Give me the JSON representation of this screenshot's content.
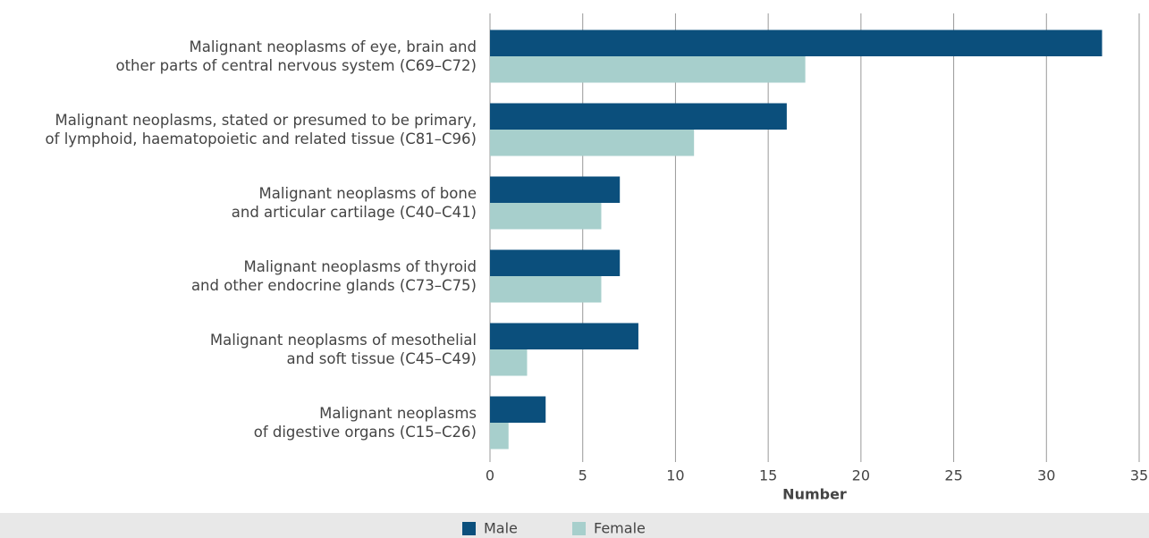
{
  "chart_data": {
    "type": "barh",
    "categories": [
      "Malignant neoplasms of eye, brain and\nother parts of central nervous system (C69–C72)",
      "Malignant neoplasms, stated or presumed to be primary,\nof lymphoid, haematopoietic and related tissue (C81–C96)",
      "Malignant neoplasms of bone\nand articular cartilage (C40–C41)",
      "Malignant neoplasms of thyroid\nand other endocrine glands (C73–C75)",
      "Malignant neoplasms of mesothelial\nand soft tissue (C45–C49)",
      "Malignant neoplasms\nof digestive organs (C15–C26)"
    ],
    "series": [
      {
        "name": "Male",
        "color": "#0b4f7c",
        "values": [
          33,
          16,
          7,
          7,
          8,
          3
        ]
      },
      {
        "name": "Female",
        "color": "#a7cfcc",
        "values": [
          17,
          11,
          6,
          6,
          2,
          1
        ]
      }
    ],
    "xlabel": "Number",
    "xlim": [
      0,
      35
    ],
    "xticks": [
      0,
      5,
      10,
      15,
      20,
      25,
      30,
      35
    ],
    "grid": true,
    "legend": "bottom"
  }
}
